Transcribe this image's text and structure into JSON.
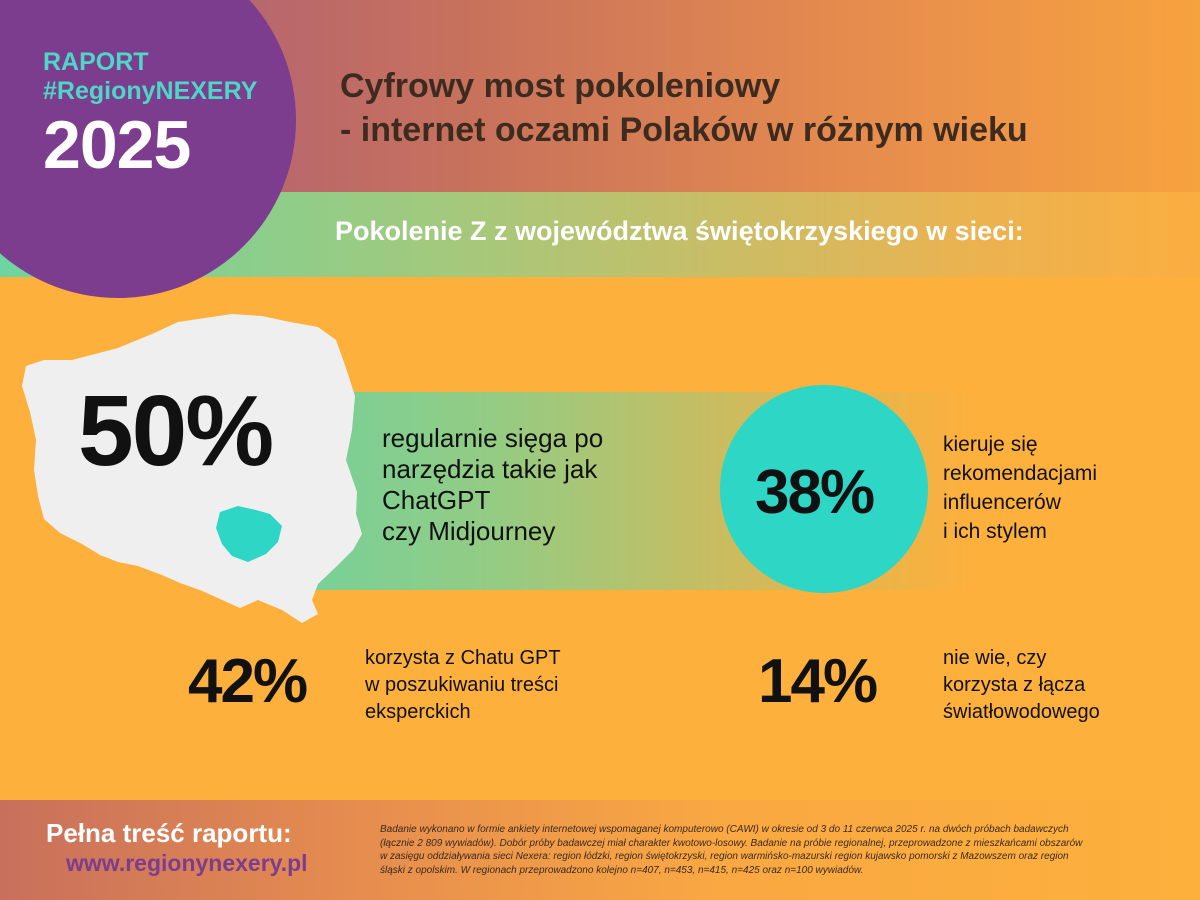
{
  "badge": {
    "line1": "RAPORT",
    "line2": "#RegionyNEXERY",
    "year": "2025"
  },
  "title": {
    "line1": "Cyfrowy most pokoleniowy",
    "line2": "- internet oczami Polaków w różnym wieku"
  },
  "subtitle": "Pokolenie Z z województwa świętokrzyskiego w sieci:",
  "stats": {
    "s50": {
      "value": "50%",
      "desc": [
        "regularnie sięga po",
        "narzędzia takie jak",
        "ChatGPT",
        "czy Midjourney"
      ]
    },
    "s38": {
      "value": "38%",
      "desc": [
        "kieruje się",
        "rekomendacjami",
        "influencerów",
        "i ich stylem"
      ]
    },
    "s42": {
      "value": "42%",
      "desc": [
        "korzysta z Chatu GPT",
        "w poszukiwaniu treści",
        "eksperckich"
      ]
    },
    "s14": {
      "value": "14%",
      "desc": [
        "nie wie, czy",
        "korzysta z łącza",
        "światłowodowego"
      ]
    }
  },
  "footer": {
    "cta_label": "Pełna treść raportu:",
    "cta_url": "www.regionynexery.pl",
    "note": [
      "Badanie wykonano w formie ankiety internetowej wspomaganej komputerowo (CAWI) w okresie od 3 do 11 czerwca 2025 r. na dwóch próbach badawczych",
      "(łącznie 2 809 wywiadów). Dobór próby badawczej miał charakter kwotowo-losowy. Badanie na próbie regionalnej, przeprowadzone z mieszkańcami obszarów",
      "w zasięgu oddziaływania sieci Nexera: region łódzki, region świętokrzyski, region warmińsko-mazurski region kujawsko pomorski z Mazowszem oraz region",
      "śląski z opolskim. W regionach przeprowadzono kolejno n=407, n=453, n=415, n=425 oraz n=100 wywiadów."
    ]
  },
  "colors": {
    "purple": "#7d3d8f",
    "teal": "#2dd6c5",
    "orange": "#fdb03c",
    "green": "#6dd5a0",
    "title_brown": "#3e2b20"
  }
}
